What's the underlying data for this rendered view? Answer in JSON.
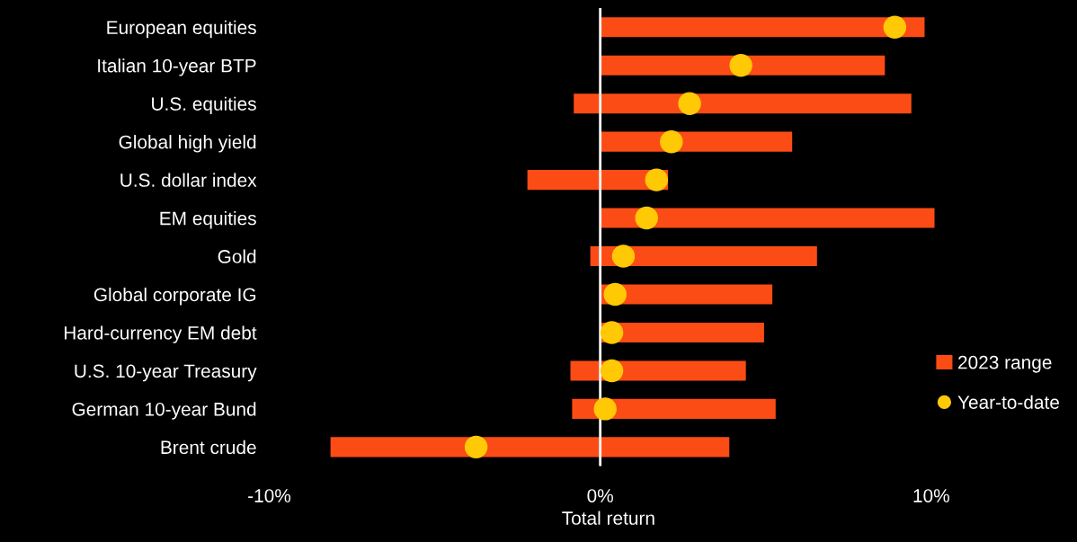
{
  "chart_data": {
    "type": "bar",
    "orientation": "horizontal",
    "xlabel": "Total return",
    "categories": [
      "European equities",
      "Italian 10-year BTP",
      "U.S. equities",
      "Global high yield",
      "U.S. dollar index",
      "EM equities",
      "Gold",
      "Global corporate IG",
      "Hard-currency EM debt",
      "U.S. 10-year Treasury",
      "German 10-year Bund",
      "Brent crude"
    ],
    "series": [
      {
        "name": "2023 range",
        "color": "#fc4c15",
        "base": [
          0,
          0,
          -0.8,
          0,
          -2.2,
          0,
          -0.3,
          0,
          0,
          -0.9,
          -0.85,
          -8.15
        ],
        "values": [
          9.8,
          8.6,
          10.2,
          5.8,
          4.25,
          10.1,
          6.85,
          5.2,
          4.95,
          5.3,
          6.15,
          12.05
        ]
      },
      {
        "name": "Year-to-date",
        "type": "scatter",
        "color": "#ffc906",
        "marker": "circle",
        "values": [
          8.9,
          4.25,
          2.7,
          2.15,
          1.7,
          1.4,
          0.7,
          0.45,
          0.35,
          0.35,
          0.15,
          -3.75
        ]
      }
    ],
    "xlim": [
      -10,
      10.5
    ],
    "xticks": [
      {
        "value": -10,
        "label": "-10%"
      },
      {
        "value": 0,
        "label": "0%"
      },
      {
        "value": 10,
        "label": "10%"
      }
    ],
    "ref_lines": [
      {
        "axis": "x",
        "value": 0,
        "color": "#ffffff"
      }
    ],
    "grid": false,
    "legend": "bottom right"
  }
}
